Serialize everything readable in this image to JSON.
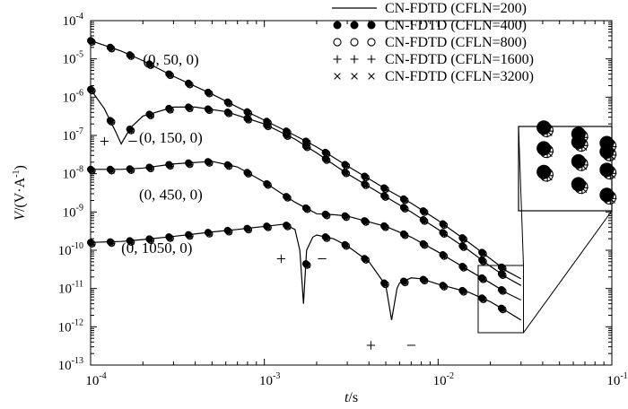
{
  "chart_data": {
    "type": "line",
    "xscale": "log",
    "yscale": "log",
    "xlim": [
      0.0001,
      0.1
    ],
    "ylim": [
      1e-13,
      0.0001
    ],
    "xlabel_main": "t",
    "xlabel_unit": "/s",
    "ylabel_main": "V",
    "ylabel_unit": "/(V·A",
    "ylabel_sup": "-1",
    "ylabel_close": ")",
    "xticks": [
      {
        "value": 0.0001,
        "base": "10",
        "exp": "-4"
      },
      {
        "value": 0.001,
        "base": "10",
        "exp": "-3"
      },
      {
        "value": 0.01,
        "base": "10",
        "exp": "-2"
      },
      {
        "value": 0.1,
        "base": "10",
        "exp": "-1"
      }
    ],
    "yticks": [
      {
        "value": 0.0001,
        "base": "10",
        "exp": "-4"
      },
      {
        "value": 1e-05,
        "base": "10",
        "exp": "-5"
      },
      {
        "value": 1e-06,
        "base": "10",
        "exp": "-6"
      },
      {
        "value": 1e-07,
        "base": "10",
        "exp": "-7"
      },
      {
        "value": 1e-08,
        "base": "10",
        "exp": "-8"
      },
      {
        "value": 1e-09,
        "base": "10",
        "exp": "-9"
      },
      {
        "value": 1e-10,
        "base": "10",
        "exp": "-10"
      },
      {
        "value": 1e-11,
        "base": "10",
        "exp": "-11"
      },
      {
        "value": 1e-12,
        "base": "10",
        "exp": "-12"
      },
      {
        "value": 1e-13,
        "base": "10",
        "exp": "-13"
      }
    ],
    "legend_position": "top-right",
    "legend": [
      {
        "symbol": "line",
        "label": "CN-FDTD (CFLN=200)"
      },
      {
        "symbol": "filled-circle",
        "label": "CN-FDTD (CFLN=400)"
      },
      {
        "symbol": "open-circle",
        "label": "CN-FDTD (CFLN=800)"
      },
      {
        "symbol": "plus",
        "label": "CN-FDTD (CFLN=1600)"
      },
      {
        "symbol": "cross",
        "label": "CN-FDTD (CFLN=3200)"
      }
    ],
    "curves": [
      {
        "label": "(0, 50, 0)",
        "points": [
          [
            0.0001,
            3e-05
          ],
          [
            0.00015,
            1.6e-05
          ],
          [
            0.0002,
            9e-06
          ],
          [
            0.0003,
            3.5e-06
          ],
          [
            0.0005,
            1.2e-06
          ],
          [
            0.0007,
            5.5e-07
          ],
          [
            0.001,
            2.5e-07
          ],
          [
            0.0015,
            1e-07
          ],
          [
            0.002,
            5e-08
          ],
          [
            0.003,
            1.6e-08
          ],
          [
            0.005,
            4e-09
          ],
          [
            0.007,
            1.7e-09
          ],
          [
            0.01,
            6e-10
          ],
          [
            0.015,
            1.6e-10
          ],
          [
            0.02,
            6e-11
          ],
          [
            0.025,
            2.8e-11
          ],
          [
            0.03,
            1.8e-11
          ]
        ]
      },
      {
        "label": "(0, 150, 0)",
        "points": [
          [
            0.0001,
            1.6e-06
          ],
          [
            0.00012,
            5e-07
          ],
          [
            0.00014,
            1.2e-07
          ],
          [
            0.00015,
            6e-08
          ],
          [
            0.00017,
            1.6e-07
          ],
          [
            0.0002,
            3.2e-07
          ],
          [
            0.0003,
            5.5e-07
          ],
          [
            0.0004,
            5.5e-07
          ],
          [
            0.0006,
            4.2e-07
          ],
          [
            0.001,
            2e-07
          ],
          [
            0.0015,
            8e-08
          ],
          [
            0.002,
            3.5e-08
          ],
          [
            0.003,
            1e-08
          ],
          [
            0.005,
            2.5e-09
          ],
          [
            0.007,
            1e-09
          ],
          [
            0.01,
            3.5e-10
          ],
          [
            0.015,
            1e-10
          ],
          [
            0.02,
            3.8e-11
          ],
          [
            0.025,
            1.9e-11
          ],
          [
            0.03,
            1.2e-11
          ]
        ]
      },
      {
        "label": "(0, 450, 0)",
        "points": [
          [
            0.0001,
            1.3e-08
          ],
          [
            0.00015,
            1.3e-08
          ],
          [
            0.0002,
            1.4e-08
          ],
          [
            0.0003,
            1.8e-08
          ],
          [
            0.0005,
            2.1e-08
          ],
          [
            0.0007,
            1.5e-08
          ],
          [
            0.001,
            6e-09
          ],
          [
            0.0015,
            1.8e-09
          ],
          [
            0.002,
            9e-10
          ],
          [
            0.0025,
            8.5e-10
          ],
          [
            0.003,
            7.8e-10
          ],
          [
            0.005,
            4.2e-10
          ],
          [
            0.007,
            2.2e-10
          ],
          [
            0.01,
            9e-11
          ],
          [
            0.015,
            3e-11
          ],
          [
            0.02,
            1.4e-11
          ],
          [
            0.025,
            7.5e-12
          ],
          [
            0.03,
            5e-12
          ]
        ]
      },
      {
        "label": "(0, 1050, 0)",
        "points": [
          [
            0.0001,
            1.6e-10
          ],
          [
            0.00015,
            1.7e-10
          ],
          [
            0.0002,
            1.9e-10
          ],
          [
            0.0003,
            2.3e-10
          ],
          [
            0.0005,
            3e-10
          ],
          [
            0.0007,
            3.5e-10
          ],
          [
            0.001,
            4.2e-10
          ],
          [
            0.0013,
            4.8e-10
          ],
          [
            0.0015,
            3.5e-10
          ],
          [
            0.0016,
            1e-10
          ],
          [
            0.00168,
            4e-12
          ],
          [
            0.00175,
            1e-10
          ],
          [
            0.0019,
            2.2e-10
          ],
          [
            0.002,
            2.5e-10
          ],
          [
            0.0025,
            2e-10
          ],
          [
            0.003,
            1.3e-10
          ],
          [
            0.004,
            5e-11
          ],
          [
            0.005,
            1.2e-11
          ],
          [
            0.0054,
            1.5e-12
          ],
          [
            0.0058,
            1e-11
          ],
          [
            0.006,
            1.4e-11
          ],
          [
            0.007,
            1.9e-11
          ],
          [
            0.008,
            1.8e-11
          ],
          [
            0.01,
            1.3e-11
          ],
          [
            0.015,
            8e-12
          ],
          [
            0.02,
            4.5e-12
          ],
          [
            0.025,
            2.5e-12
          ],
          [
            0.03,
            1.5e-12
          ]
        ]
      }
    ],
    "curve_labels": [
      {
        "text": "(0, 50, 0)",
        "x": 0.0002,
        "y": 7.2e-06
      },
      {
        "text": "(0, 150, 0)",
        "x": 0.00019,
        "y": 6.5e-08
      },
      {
        "text": "(0, 450, 0)",
        "x": 0.00019,
        "y": 2.1e-09
      },
      {
        "text": "(0, 1050, 0)",
        "x": 0.00015,
        "y": 8.5e-11
      }
    ],
    "sign_annotations": [
      {
        "text": "+",
        "x": 0.00012,
        "y": 5e-08
      },
      {
        "text": "−",
        "x": 0.000175,
        "y": 5e-08
      },
      {
        "text": "+",
        "x": 0.00125,
        "y": 4.2e-11
      },
      {
        "text": "−",
        "x": 0.00215,
        "y": 4.2e-11
      },
      {
        "text": "+",
        "x": 0.0041,
        "y": 2.3e-13
      },
      {
        "text": "−",
        "x": 0.007,
        "y": 2.3e-13
      }
    ]
  }
}
